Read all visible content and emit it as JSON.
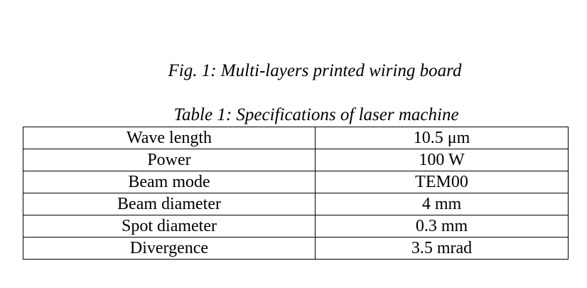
{
  "figure": {
    "caption": "Fig. 1: Multi-layers printed wiring board"
  },
  "table": {
    "caption": "Table 1: Specifications of laser machine",
    "rows": [
      {
        "parameter": "Wave length",
        "value": "10.5 μm"
      },
      {
        "parameter": "Power",
        "value": "100 W"
      },
      {
        "parameter": "Beam mode",
        "value": "TEM00"
      },
      {
        "parameter": "Beam diameter",
        "value": "4 mm"
      },
      {
        "parameter": "Spot diameter",
        "value": "0.3 mm"
      },
      {
        "parameter": "Divergence",
        "value": "3.5 mrad"
      }
    ]
  }
}
